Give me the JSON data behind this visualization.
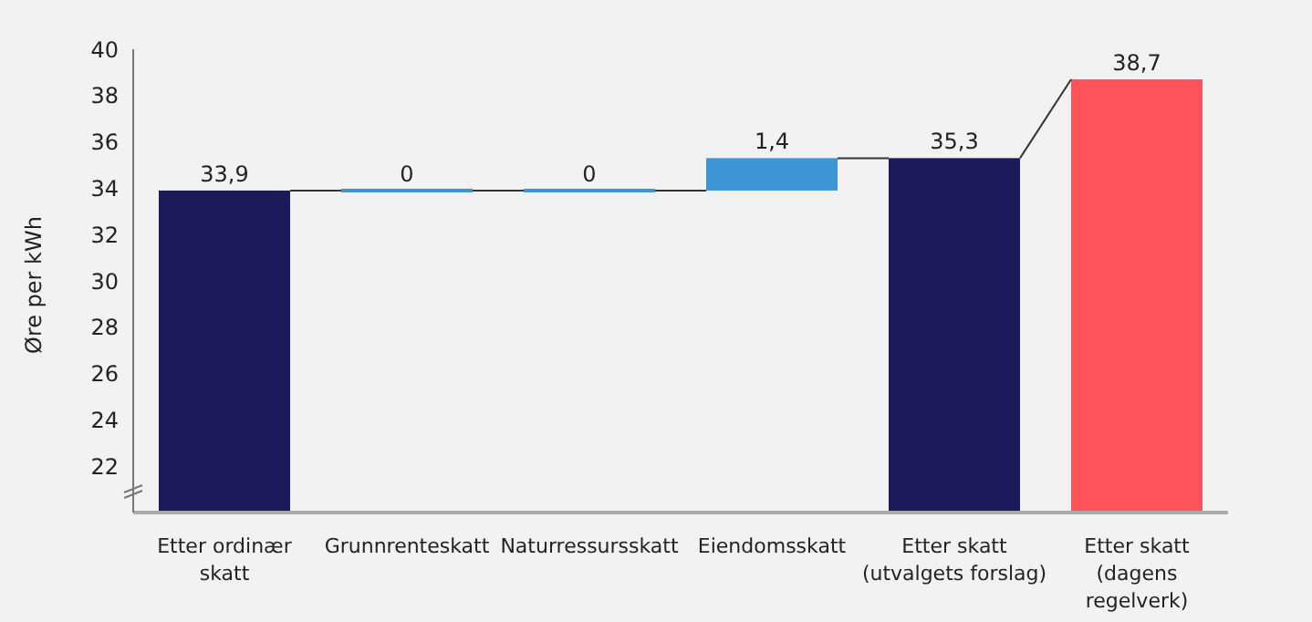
{
  "chart_data": {
    "type": "bar",
    "ylabel": "Øre per kWh",
    "categories": [
      "Etter ordinær\nskatt",
      "Grunnrenteskatt",
      "Naturressursskatt",
      "Eiendomsskatt",
      "Etter skatt\n(utvalgets forslag)",
      "Etter skatt\n(dagens\nregelverk)"
    ],
    "values": [
      33.9,
      0,
      0,
      1.4,
      35.3,
      38.7
    ],
    "base": [
      null,
      33.9,
      33.9,
      33.9,
      null,
      null
    ],
    "colors": [
      "#1c1a5b",
      "#3d95d3",
      "#3d95d3",
      "#3d95d3",
      "#1c1a5b",
      "#ff525a"
    ],
    "value_labels": [
      "33,9",
      "0",
      "0",
      "1,4",
      "35,3",
      "38,7"
    ],
    "ylim": [
      20,
      40
    ],
    "yticks": [
      22,
      24,
      26,
      28,
      30,
      32,
      34,
      36,
      38,
      40
    ],
    "grid": false,
    "legend": false
  }
}
